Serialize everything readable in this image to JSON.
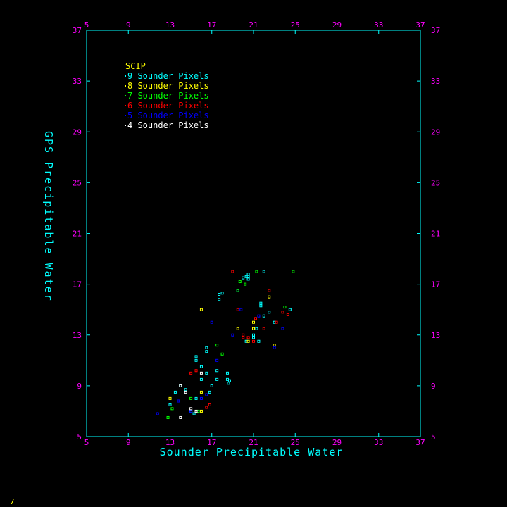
{
  "chart_data": {
    "type": "scatter",
    "title": "",
    "xlabel": "Sounder Precipitable Water",
    "ylabel": "GPS Precipitable Water",
    "xlim": [
      5,
      37
    ],
    "ylim": [
      5,
      37
    ],
    "xticks": [
      5,
      9,
      13,
      17,
      21,
      25,
      29,
      33,
      37
    ],
    "yticks": [
      5,
      9,
      13,
      17,
      21,
      25,
      29,
      33,
      37
    ],
    "grid": false,
    "legend_title": "SCIP",
    "legend_placement": "top-left",
    "series": [
      {
        "name": "9 Sounder Pixels",
        "color": "#00ffff",
        "points": [
          [
            13,
            7.5
          ],
          [
            13.5,
            8.5
          ],
          [
            14,
            9
          ],
          [
            15,
            7
          ],
          [
            15.5,
            8
          ],
          [
            15.5,
            11.3
          ],
          [
            15.5,
            11
          ],
          [
            16,
            10.5
          ],
          [
            16,
            9.5
          ],
          [
            16.5,
            12
          ],
          [
            16.5,
            11.7
          ],
          [
            16.5,
            10
          ],
          [
            17,
            9
          ],
          [
            16.8,
            8.5
          ],
          [
            17.5,
            10.2
          ],
          [
            17.5,
            9.5
          ],
          [
            17.7,
            15.8
          ],
          [
            17.7,
            16.2
          ],
          [
            18,
            16.3
          ],
          [
            18.5,
            10
          ],
          [
            18.5,
            9.5
          ],
          [
            18.6,
            9.2
          ],
          [
            18.7,
            9.4
          ],
          [
            19.5,
            16.5
          ],
          [
            20,
            17.5
          ],
          [
            20.3,
            17.6
          ],
          [
            20.5,
            17.8
          ],
          [
            20.5,
            17.4
          ],
          [
            20.5,
            17.6
          ],
          [
            20.3,
            12.5
          ],
          [
            21,
            13
          ],
          [
            21,
            12.8
          ],
          [
            21.3,
            13.5
          ],
          [
            21.5,
            12.5
          ],
          [
            21.7,
            15.5
          ],
          [
            21.7,
            15.3
          ],
          [
            22,
            18
          ],
          [
            22,
            14.5
          ],
          [
            22.5,
            14.8
          ],
          [
            23,
            14
          ],
          [
            24.5,
            15
          ],
          [
            15.3,
            6.8
          ],
          [
            14.5,
            8.7
          ]
        ]
      },
      {
        "name": "8 Sounder Pixels",
        "color": "#ffff00",
        "points": [
          [
            13,
            8
          ],
          [
            16,
            8.5
          ],
          [
            16,
            15
          ],
          [
            16,
            7
          ],
          [
            19.5,
            13.5
          ],
          [
            20.5,
            12.5
          ],
          [
            21,
            13.5
          ],
          [
            21,
            14
          ],
          [
            22.5,
            16
          ],
          [
            23,
            12.2
          ]
        ]
      },
      {
        "name": "7 Sounder Pixels",
        "color": "#00ff00",
        "points": [
          [
            12.8,
            6.5
          ],
          [
            13.2,
            7.2
          ],
          [
            15,
            8
          ],
          [
            15.7,
            7
          ],
          [
            17.5,
            12.2
          ],
          [
            18,
            11.5
          ],
          [
            19.5,
            16.5
          ],
          [
            19.7,
            17.2
          ],
          [
            20.2,
            17
          ],
          [
            21.3,
            18
          ],
          [
            24,
            15.2
          ],
          [
            24.8,
            18
          ]
        ]
      },
      {
        "name": "6 Sounder Pixels",
        "color": "#ff0000",
        "points": [
          [
            15,
            10
          ],
          [
            15.5,
            10.2
          ],
          [
            16.5,
            7.3
          ],
          [
            16.8,
            7.5
          ],
          [
            19,
            18
          ],
          [
            19.5,
            15
          ],
          [
            20,
            13
          ],
          [
            20,
            12.8
          ],
          [
            20.5,
            12.8
          ],
          [
            21,
            12.5
          ],
          [
            21.2,
            14.3
          ],
          [
            22,
            13.5
          ],
          [
            22.5,
            16.5
          ],
          [
            23.2,
            14
          ],
          [
            23.8,
            14.8
          ],
          [
            24.3,
            14.6
          ]
        ]
      },
      {
        "name": "5 Sounder Pixels",
        "color": "#0000ff",
        "points": [
          [
            11.8,
            6.8
          ],
          [
            13.8,
            7.8
          ],
          [
            15,
            7
          ],
          [
            16,
            8
          ],
          [
            16.5,
            8.3
          ],
          [
            17,
            14
          ],
          [
            17.5,
            11
          ],
          [
            19,
            13
          ],
          [
            19.8,
            15
          ],
          [
            21.5,
            14.5
          ],
          [
            23,
            12
          ],
          [
            23.8,
            13.5
          ]
        ]
      },
      {
        "name": "4 Sounder Pixels",
        "color": "#ffffff",
        "points": [
          [
            14,
            6.5
          ],
          [
            15,
            7.2
          ],
          [
            15.5,
            7
          ],
          [
            16,
            10
          ],
          [
            14,
            9
          ],
          [
            14.5,
            8.5
          ]
        ]
      }
    ]
  },
  "corner_label": "7"
}
